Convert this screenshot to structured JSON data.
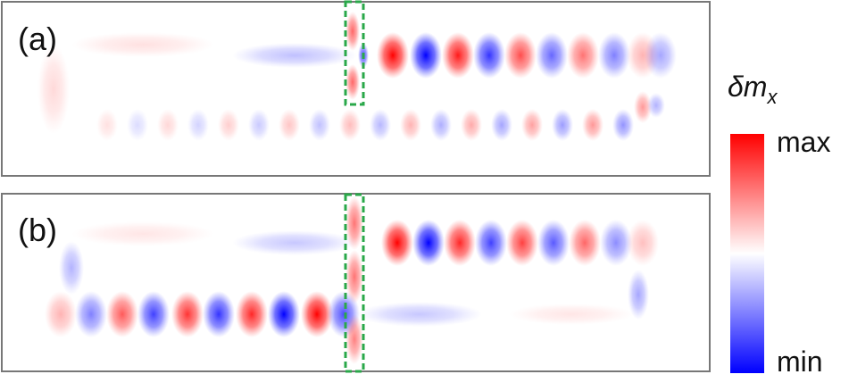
{
  "panels": [
    {
      "label": "(a)"
    },
    {
      "label": "(b)"
    }
  ],
  "colorbar": {
    "title": "δm",
    "title_subscript": "x",
    "max_label": "max",
    "min_label": "min"
  }
}
